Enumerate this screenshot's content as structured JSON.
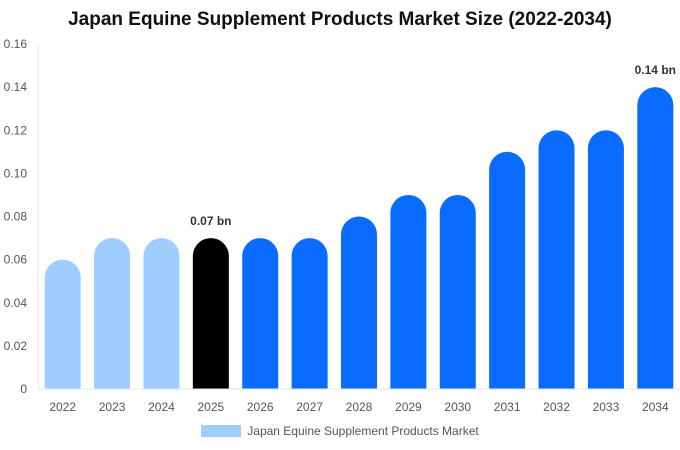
{
  "chart_data": {
    "type": "bar",
    "title": "Japan Equine Supplement Products Market Size (2022-2034)",
    "categories": [
      "2022",
      "2023",
      "2024",
      "2025",
      "2026",
      "2027",
      "2028",
      "2029",
      "2030",
      "2031",
      "2032",
      "2033",
      "2034"
    ],
    "series": [
      {
        "name": "Japan Equine Supplement Products Market",
        "values": [
          0.06,
          0.07,
          0.07,
          0.07,
          0.07,
          0.07,
          0.08,
          0.09,
          0.09,
          0.11,
          0.12,
          0.12,
          0.14
        ]
      }
    ],
    "ylim": [
      0,
      0.16
    ],
    "yticks": [
      "0",
      "0.02",
      "0.04",
      "0.06",
      "0.08",
      "0.10",
      "0.12",
      "0.14",
      "0.16"
    ],
    "annotations": [
      {
        "category": "2025",
        "text": "0.07 bn"
      },
      {
        "category": "2034",
        "text": "0.14 bn"
      }
    ],
    "colors": {
      "historical": "#9fcdff",
      "current": "#000000",
      "forecast": "#0a6cff"
    },
    "bar_color_groups": [
      "historical",
      "historical",
      "historical",
      "current",
      "forecast",
      "forecast",
      "forecast",
      "forecast",
      "forecast",
      "forecast",
      "forecast",
      "forecast",
      "forecast"
    ],
    "legend_position": "bottom-center",
    "grid": false
  }
}
